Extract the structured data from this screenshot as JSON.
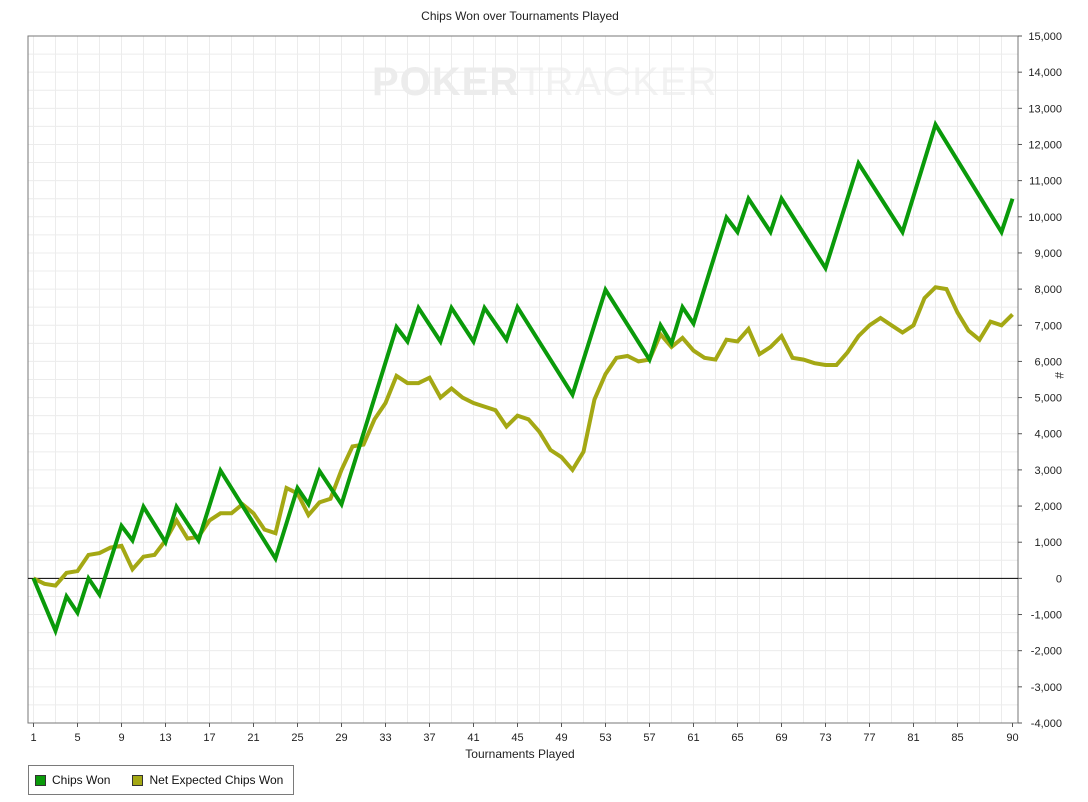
{
  "watermark": {
    "brand_strong": "POKER",
    "brand_light": "TRACKER"
  },
  "chart_data": {
    "type": "line",
    "title": "Chips Won over Tournaments Played",
    "xlabel": "Tournaments Played",
    "ylabel": "#",
    "xlim": [
      0.5,
      90.5
    ],
    "ylim": [
      -4000,
      15000
    ],
    "x_ticks": [
      1,
      5,
      9,
      13,
      17,
      21,
      25,
      29,
      33,
      37,
      41,
      45,
      49,
      53,
      57,
      61,
      65,
      69,
      73,
      77,
      81,
      85,
      90
    ],
    "y_ticks": [
      -4000,
      -3000,
      -2000,
      -1000,
      0,
      1000,
      2000,
      3000,
      4000,
      5000,
      6000,
      7000,
      8000,
      9000,
      10000,
      11000,
      12000,
      13000,
      14000,
      15000
    ],
    "y_tick_labels": [
      "-4,000",
      "-3,000",
      "-2,000",
      "-1,000",
      "0",
      "1,000",
      "2,000",
      "3,000",
      "4,000",
      "5,000",
      "6,000",
      "7,000",
      "8,000",
      "9,000",
      "10,000",
      "11,000",
      "12,000",
      "13,000",
      "14,000",
      "15,000"
    ],
    "grid": true,
    "legend_position": "bottom-left",
    "series": [
      {
        "name": "Chips Won",
        "color": "#0a9a0a",
        "points": [
          [
            1,
            0
          ],
          [
            3,
            -1450
          ],
          [
            4,
            -500
          ],
          [
            5,
            -950
          ],
          [
            6,
            0
          ],
          [
            7,
            -450
          ],
          [
            9,
            1450
          ],
          [
            10,
            1050
          ],
          [
            11,
            1980
          ],
          [
            13,
            1000
          ],
          [
            14,
            1980
          ],
          [
            16,
            1050
          ],
          [
            18,
            2980
          ],
          [
            23,
            550
          ],
          [
            25,
            2500
          ],
          [
            26,
            2050
          ],
          [
            27,
            2970
          ],
          [
            29,
            2050
          ],
          [
            34,
            6950
          ],
          [
            35,
            6550
          ],
          [
            36,
            7480
          ],
          [
            38,
            6550
          ],
          [
            39,
            7480
          ],
          [
            41,
            6550
          ],
          [
            42,
            7480
          ],
          [
            44,
            6600
          ],
          [
            45,
            7500
          ],
          [
            50,
            5080
          ],
          [
            53,
            7980
          ],
          [
            57,
            6050
          ],
          [
            58,
            7000
          ],
          [
            59,
            6500
          ],
          [
            60,
            7500
          ],
          [
            61,
            7050
          ],
          [
            64,
            9980
          ],
          [
            65,
            9580
          ],
          [
            66,
            10500
          ],
          [
            68,
            9580
          ],
          [
            69,
            10500
          ],
          [
            73,
            8580
          ],
          [
            76,
            11480
          ],
          [
            80,
            9580
          ],
          [
            83,
            12550
          ],
          [
            89,
            9580
          ],
          [
            90,
            10500
          ]
        ]
      },
      {
        "name": "Net Expected Chips Won",
        "color": "#a4a814",
        "points": [
          [
            1,
            0
          ],
          [
            2,
            -150
          ],
          [
            3,
            -200
          ],
          [
            4,
            150
          ],
          [
            5,
            200
          ],
          [
            6,
            650
          ],
          [
            7,
            700
          ],
          [
            8,
            850
          ],
          [
            9,
            900
          ],
          [
            10,
            250
          ],
          [
            11,
            600
          ],
          [
            12,
            650
          ],
          [
            13,
            1050
          ],
          [
            14,
            1600
          ],
          [
            15,
            1100
          ],
          [
            16,
            1150
          ],
          [
            17,
            1600
          ],
          [
            18,
            1800
          ],
          [
            19,
            1800
          ],
          [
            20,
            2050
          ],
          [
            21,
            1800
          ],
          [
            22,
            1350
          ],
          [
            23,
            1250
          ],
          [
            24,
            2500
          ],
          [
            25,
            2350
          ],
          [
            26,
            1750
          ],
          [
            27,
            2100
          ],
          [
            28,
            2200
          ],
          [
            29,
            3000
          ],
          [
            30,
            3650
          ],
          [
            31,
            3700
          ],
          [
            32,
            4400
          ],
          [
            33,
            4850
          ],
          [
            34,
            5600
          ],
          [
            35,
            5400
          ],
          [
            36,
            5400
          ],
          [
            37,
            5550
          ],
          [
            38,
            5000
          ],
          [
            39,
            5250
          ],
          [
            40,
            5000
          ],
          [
            41,
            4850
          ],
          [
            42,
            4750
          ],
          [
            43,
            4650
          ],
          [
            44,
            4200
          ],
          [
            45,
            4500
          ],
          [
            46,
            4400
          ],
          [
            47,
            4050
          ],
          [
            48,
            3550
          ],
          [
            49,
            3350
          ],
          [
            50,
            3000
          ],
          [
            51,
            3500
          ],
          [
            52,
            4950
          ],
          [
            53,
            5650
          ],
          [
            54,
            6100
          ],
          [
            55,
            6150
          ],
          [
            56,
            6000
          ],
          [
            57,
            6050
          ],
          [
            58,
            6750
          ],
          [
            59,
            6400
          ],
          [
            60,
            6650
          ],
          [
            61,
            6300
          ],
          [
            62,
            6100
          ],
          [
            63,
            6050
          ],
          [
            64,
            6600
          ],
          [
            65,
            6550
          ],
          [
            66,
            6900
          ],
          [
            67,
            6200
          ],
          [
            68,
            6400
          ],
          [
            69,
            6700
          ],
          [
            70,
            6100
          ],
          [
            71,
            6050
          ],
          [
            72,
            5950
          ],
          [
            73,
            5900
          ],
          [
            74,
            5900
          ],
          [
            75,
            6250
          ],
          [
            76,
            6700
          ],
          [
            77,
            7000
          ],
          [
            78,
            7200
          ],
          [
            79,
            7000
          ],
          [
            80,
            6800
          ],
          [
            81,
            7000
          ],
          [
            82,
            7750
          ],
          [
            83,
            8050
          ],
          [
            84,
            8000
          ],
          [
            85,
            7350
          ],
          [
            86,
            6850
          ],
          [
            87,
            6600
          ],
          [
            88,
            7100
          ],
          [
            89,
            7000
          ],
          [
            90,
            7300
          ]
        ]
      }
    ]
  }
}
